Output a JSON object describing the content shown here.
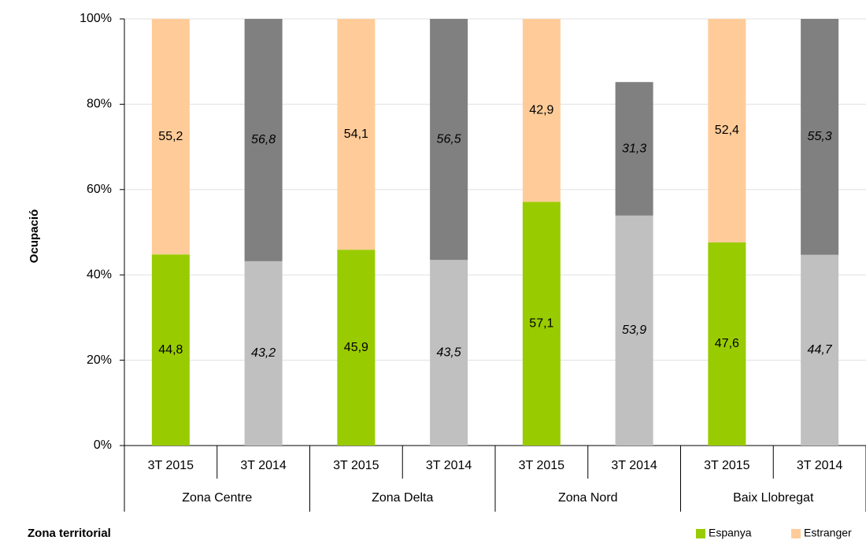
{
  "chart_data": {
    "type": "stacked_bar",
    "y_label": "Ocupació",
    "x_label": "Zona territorial",
    "categories": [
      "3T 2015",
      "3T 2014",
      "3T 2015",
      "3T 2014",
      "3T 2015",
      "3T 2014",
      "3T 2015",
      "3T 2014"
    ],
    "groups": [
      {
        "name": "Zona Centre",
        "size": 2
      },
      {
        "name": "Zona Delta",
        "size": 2
      },
      {
        "name": "Zona Nord",
        "size": 2
      },
      {
        "name": "Baix Llobregat",
        "size": 2
      }
    ],
    "italic_labels": [
      false,
      true,
      false,
      true,
      false,
      true,
      false,
      true
    ],
    "series": [
      {
        "name": "Espanya",
        "color": "#99cc00",
        "bar_colors": [
          "#99cc00",
          "#c0c0c0",
          "#99cc00",
          "#c0c0c0",
          "#99cc00",
          "#c0c0c0",
          "#99cc00",
          "#c0c0c0"
        ],
        "label_colors": [
          "#000000",
          "#000000",
          "#000000",
          "#000000",
          "#000000",
          "#000000",
          "#000000",
          "#000000"
        ],
        "values": [
          44.8,
          43.2,
          45.9,
          43.5,
          57.1,
          53.9,
          47.6,
          44.7
        ],
        "value_labels": [
          "44,8",
          "43,2",
          "45,9",
          "43,5",
          "57,1",
          "53,9",
          "47,6",
          "44,7"
        ]
      },
      {
        "name": "Estranger",
        "color": "#ffcc99",
        "bar_colors": [
          "#ffcc99",
          "#808080",
          "#ffcc99",
          "#808080",
          "#ffcc99",
          "#808080",
          "#ffcc99",
          "#808080"
        ],
        "label_colors": [
          "#000000",
          "#f2f2f2",
          "#000000",
          "#f2f2f2",
          "#000000",
          "#f2f2f2",
          "#000000",
          "#f2f2f2"
        ],
        "values": [
          55.2,
          56.8,
          54.1,
          56.5,
          42.9,
          31.3,
          52.4,
          55.3
        ],
        "value_labels": [
          "55,2",
          "56,8",
          "54,1",
          "56,5",
          "42,9",
          "31,3",
          "52,4",
          "55,3"
        ]
      }
    ],
    "ylim": [
      0,
      100
    ],
    "yticks": [
      {
        "value": 0,
        "label": "0%"
      },
      {
        "value": 20,
        "label": "20%"
      },
      {
        "value": 40,
        "label": "40%"
      },
      {
        "value": 60,
        "label": "60%"
      },
      {
        "value": 80,
        "label": "80%"
      },
      {
        "value": 100,
        "label": "100%"
      }
    ],
    "grid": true
  }
}
